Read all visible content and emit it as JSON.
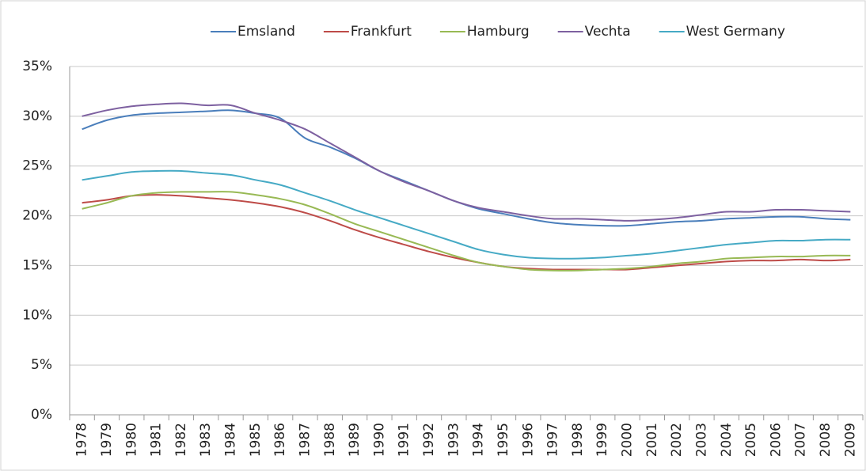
{
  "chart_data": {
    "type": "line",
    "categories": [
      "1978",
      "1979",
      "1980",
      "1981",
      "1982",
      "1983",
      "1984",
      "1985",
      "1986",
      "1987",
      "1988",
      "1989",
      "1990",
      "1991",
      "1992",
      "1993",
      "1994",
      "1995",
      "1996",
      "1997",
      "1998",
      "1999",
      "2000",
      "2001",
      "2002",
      "2003",
      "2004",
      "2005",
      "2006",
      "2007",
      "2008",
      "2009"
    ],
    "series": [
      {
        "name": "Emsland",
        "color": "#4a7ebb",
        "values": [
          28.7,
          29.6,
          30.1,
          30.3,
          30.4,
          30.5,
          30.6,
          30.3,
          29.8,
          27.8,
          26.9,
          25.8,
          24.5,
          23.5,
          22.5,
          21.5,
          20.7,
          20.2,
          19.7,
          19.3,
          19.1,
          19.0,
          19.0,
          19.2,
          19.4,
          19.5,
          19.7,
          19.8,
          19.9,
          19.9,
          19.7,
          19.6
        ]
      },
      {
        "name": "Frankfurt",
        "color": "#be4b48",
        "values": [
          21.3,
          21.6,
          22.0,
          22.1,
          22.0,
          21.8,
          21.6,
          21.3,
          20.9,
          20.3,
          19.5,
          18.6,
          17.8,
          17.1,
          16.4,
          15.8,
          15.3,
          14.9,
          14.7,
          14.6,
          14.6,
          14.6,
          14.6,
          14.8,
          15.0,
          15.2,
          15.4,
          15.5,
          15.5,
          15.6,
          15.5,
          15.6
        ]
      },
      {
        "name": "Hamburg",
        "color": "#98b954",
        "values": [
          20.7,
          21.3,
          22.0,
          22.3,
          22.4,
          22.4,
          22.4,
          22.1,
          21.7,
          21.1,
          20.2,
          19.2,
          18.4,
          17.6,
          16.8,
          16.0,
          15.3,
          14.9,
          14.6,
          14.5,
          14.5,
          14.6,
          14.7,
          14.9,
          15.2,
          15.4,
          15.7,
          15.8,
          15.9,
          15.9,
          16.0,
          16.0
        ]
      },
      {
        "name": "Vechta",
        "color": "#7d60a0",
        "values": [
          30.0,
          30.6,
          31.0,
          31.2,
          31.3,
          31.1,
          31.1,
          30.3,
          29.6,
          28.7,
          27.3,
          25.9,
          24.5,
          23.4,
          22.5,
          21.5,
          20.8,
          20.4,
          20.0,
          19.7,
          19.7,
          19.6,
          19.5,
          19.6,
          19.8,
          20.1,
          20.4,
          20.4,
          20.6,
          20.6,
          20.5,
          20.4
        ]
      },
      {
        "name": "West Germany",
        "color": "#46aac5",
        "values": [
          23.6,
          24.0,
          24.4,
          24.5,
          24.5,
          24.3,
          24.1,
          23.6,
          23.1,
          22.3,
          21.5,
          20.6,
          19.8,
          19.0,
          18.2,
          17.4,
          16.6,
          16.1,
          15.8,
          15.7,
          15.7,
          15.8,
          16.0,
          16.2,
          16.5,
          16.8,
          17.1,
          17.3,
          17.5,
          17.5,
          17.6,
          17.6
        ]
      }
    ],
    "ylim": [
      0,
      35
    ],
    "yticks": [
      {
        "value": 0,
        "label": "0%"
      },
      {
        "value": 5,
        "label": "5%"
      },
      {
        "value": 10,
        "label": "10%"
      },
      {
        "value": 15,
        "label": "15%"
      },
      {
        "value": 20,
        "label": "20%"
      },
      {
        "value": 25,
        "label": "25%"
      },
      {
        "value": 30,
        "label": "30%"
      },
      {
        "value": 35,
        "label": "35%"
      }
    ],
    "grid": true,
    "legend": "top"
  }
}
